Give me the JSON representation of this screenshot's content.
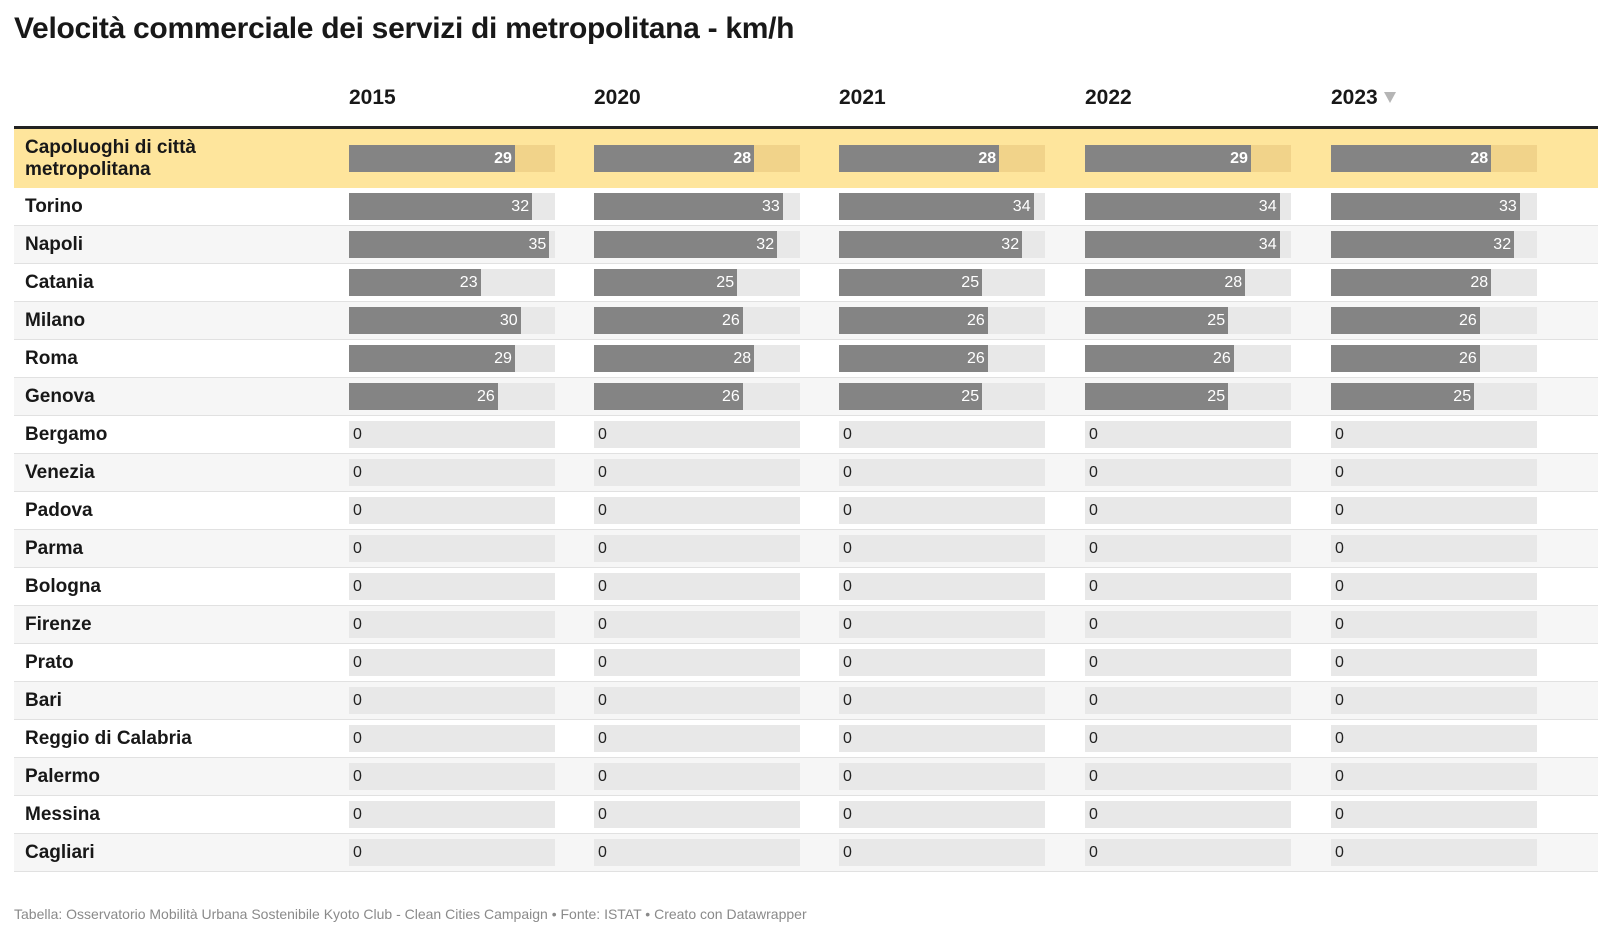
{
  "title": "Velocità commerciale dei servizi di metropolitana - km/h",
  "footer": "Tabella: Osservatorio Mobilità Urbana Sostenibile Kyoto Club - Clean Cities Campaign • Fonte: ISTAT • Creato con Datawrapper",
  "chart_data": {
    "type": "table",
    "columns": [
      "2015",
      "2020",
      "2021",
      "2022",
      "2023"
    ],
    "sorted_column": "2023",
    "sort_direction": "descending",
    "scale_max": 36,
    "highlight_row": "Capoluoghi di città metropolitana",
    "rows": [
      {
        "label": "Capoluoghi di città metropolitana",
        "values": [
          29,
          28,
          28,
          29,
          28
        ]
      },
      {
        "label": "Torino",
        "values": [
          32,
          33,
          34,
          34,
          33
        ]
      },
      {
        "label": "Napoli",
        "values": [
          35,
          32,
          32,
          34,
          32
        ]
      },
      {
        "label": "Catania",
        "values": [
          23,
          25,
          25,
          28,
          28
        ]
      },
      {
        "label": "Milano",
        "values": [
          30,
          26,
          26,
          25,
          26
        ]
      },
      {
        "label": "Roma",
        "values": [
          29,
          28,
          26,
          26,
          26
        ]
      },
      {
        "label": "Genova",
        "values": [
          26,
          26,
          25,
          25,
          25
        ]
      },
      {
        "label": "Bergamo",
        "values": [
          0,
          0,
          0,
          0,
          0
        ]
      },
      {
        "label": "Venezia",
        "values": [
          0,
          0,
          0,
          0,
          0
        ]
      },
      {
        "label": "Padova",
        "values": [
          0,
          0,
          0,
          0,
          0
        ]
      },
      {
        "label": "Parma",
        "values": [
          0,
          0,
          0,
          0,
          0
        ]
      },
      {
        "label": "Bologna",
        "values": [
          0,
          0,
          0,
          0,
          0
        ]
      },
      {
        "label": "Firenze",
        "values": [
          0,
          0,
          0,
          0,
          0
        ]
      },
      {
        "label": "Prato",
        "values": [
          0,
          0,
          0,
          0,
          0
        ]
      },
      {
        "label": "Bari",
        "values": [
          0,
          0,
          0,
          0,
          0
        ]
      },
      {
        "label": "Reggio di Calabria",
        "values": [
          0,
          0,
          0,
          0,
          0
        ]
      },
      {
        "label": "Palermo",
        "values": [
          0,
          0,
          0,
          0,
          0
        ]
      },
      {
        "label": "Messina",
        "values": [
          0,
          0,
          0,
          0,
          0
        ]
      },
      {
        "label": "Cagliari",
        "values": [
          0,
          0,
          0,
          0,
          0
        ]
      }
    ]
  },
  "colors": {
    "bar": "#848484",
    "track": "#e8e8e8",
    "highlight_background": "#fee59c",
    "highlight_track": "#f1d38a"
  }
}
